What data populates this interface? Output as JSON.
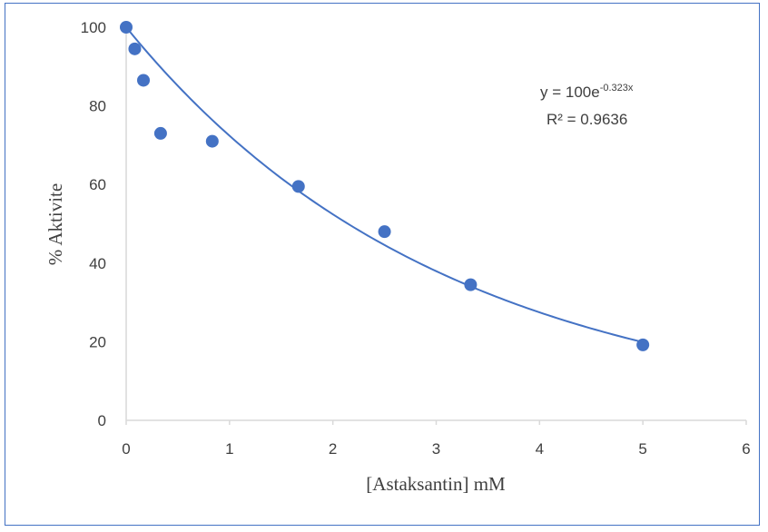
{
  "chart_data": {
    "type": "scatter",
    "title": "",
    "xlabel": "[Astaksantin] mM",
    "ylabel": "% Aktivite",
    "xlim": [
      0,
      6
    ],
    "ylim": [
      0,
      100
    ],
    "x_ticks": [
      "0",
      "1",
      "2",
      "3",
      "4",
      "5",
      "6"
    ],
    "y_ticks": [
      "0",
      "20",
      "40",
      "60",
      "80",
      "100"
    ],
    "grid": false,
    "legend": "none",
    "marker_color": "#4472c4",
    "line_color": "#4472c4",
    "series": [
      {
        "x": [
          0,
          0.083,
          0.167,
          0.333,
          0.833,
          1.667,
          2.5,
          3.333,
          5.0
        ],
        "y": [
          100,
          94.5,
          86.5,
          73,
          71,
          59.5,
          48,
          34.5,
          19.2
        ]
      }
    ],
    "trendline": {
      "type": "exponential",
      "a": 100,
      "b": -0.323,
      "equation_prefix": "y = 100e",
      "equation_exponent": "-0.323x",
      "r_squared": "R² = 0.9636"
    }
  }
}
